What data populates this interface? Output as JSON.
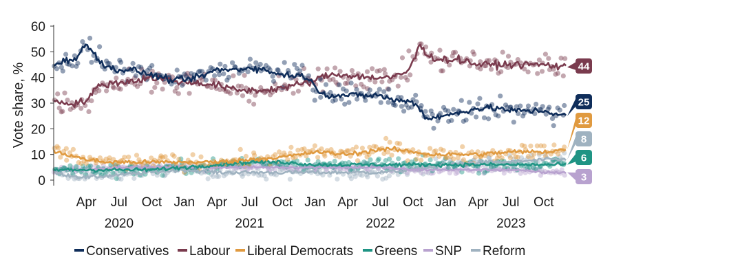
{
  "chart_data": {
    "type": "line",
    "title": "",
    "xlabel": "",
    "ylabel": "Vote share, %",
    "ylim": [
      0,
      60
    ],
    "yticks": [
      0,
      10,
      20,
      30,
      40,
      50,
      60
    ],
    "x_range": [
      2020.0,
      2023.92
    ],
    "x_ticks": [
      {
        "label": "Apr",
        "x": 2020.25
      },
      {
        "label": "Jul",
        "x": 2020.5
      },
      {
        "label": "Oct",
        "x": 2020.75
      },
      {
        "label": "Jan",
        "x": 2021.0
      },
      {
        "label": "Apr",
        "x": 2021.25
      },
      {
        "label": "Jul",
        "x": 2021.5
      },
      {
        "label": "Oct",
        "x": 2021.75
      },
      {
        "label": "Jan",
        "x": 2022.0
      },
      {
        "label": "Apr",
        "x": 2022.25
      },
      {
        "label": "Jul",
        "x": 2022.5
      },
      {
        "label": "Oct",
        "x": 2022.75
      },
      {
        "label": "Jan",
        "x": 2023.0
      },
      {
        "label": "Apr",
        "x": 2023.25
      },
      {
        "label": "Jul",
        "x": 2023.5
      },
      {
        "label": "Oct",
        "x": 2023.75
      }
    ],
    "year_labels": [
      {
        "label": "2020",
        "x": 2020.5
      },
      {
        "label": "2021",
        "x": 2021.5
      },
      {
        "label": "2022",
        "x": 2022.5
      },
      {
        "label": "2023",
        "x": 2023.5
      }
    ],
    "legend_placement": "bottom",
    "series": [
      {
        "name": "Conservatives",
        "color": "#0f2d5a",
        "end_label": "25",
        "x": [
          2020.0,
          2020.1,
          2020.17,
          2020.25,
          2020.3,
          2020.4,
          2020.5,
          2020.6,
          2020.75,
          2020.9,
          2021.0,
          2021.1,
          2021.25,
          2021.4,
          2021.5,
          2021.6,
          2021.75,
          2021.85,
          2021.95,
          2022.0,
          2022.1,
          2022.25,
          2022.4,
          2022.5,
          2022.6,
          2022.7,
          2022.77,
          2022.85,
          2023.0,
          2023.15,
          2023.25,
          2023.4,
          2023.5,
          2023.6,
          2023.75,
          2023.92
        ],
        "y": [
          45,
          47,
          47,
          53,
          50,
          44,
          43,
          43,
          41,
          39,
          39,
          40,
          43,
          43,
          44,
          43,
          41,
          41,
          40,
          36,
          33,
          33,
          33,
          33,
          31,
          31,
          30,
          24,
          25,
          27,
          28,
          28,
          27,
          27,
          27,
          25
        ]
      },
      {
        "name": "Labour",
        "color": "#7a3b4e",
        "end_label": "44",
        "x": [
          2020.0,
          2020.1,
          2020.17,
          2020.25,
          2020.35,
          2020.5,
          2020.65,
          2020.75,
          2020.9,
          2021.0,
          2021.1,
          2021.25,
          2021.4,
          2021.5,
          2021.6,
          2021.75,
          2021.85,
          2021.95,
          2022.0,
          2022.1,
          2022.25,
          2022.4,
          2022.5,
          2022.6,
          2022.7,
          2022.77,
          2022.8,
          2022.85,
          2022.95,
          2023.1,
          2023.25,
          2023.4,
          2023.5,
          2023.6,
          2023.75,
          2023.92
        ],
        "y": [
          31,
          30,
          30,
          31,
          37,
          38,
          39,
          40,
          39,
          38,
          38,
          37,
          35,
          35,
          35,
          36,
          37,
          38,
          39,
          41,
          41,
          40,
          40,
          40,
          42,
          48,
          53,
          49,
          47,
          47,
          45,
          45,
          45,
          45,
          45,
          44
        ]
      },
      {
        "name": "Liberal Democrats",
        "color": "#e09a40",
        "end_label": "12",
        "x": [
          2020.0,
          2020.1,
          2020.25,
          2020.4,
          2020.5,
          2020.75,
          2021.0,
          2021.25,
          2021.5,
          2021.75,
          2021.9,
          2022.0,
          2022.25,
          2022.5,
          2022.6,
          2022.75,
          2022.9,
          2023.0,
          2023.25,
          2023.5,
          2023.75,
          2023.92
        ],
        "y": [
          11,
          10,
          8,
          7,
          7,
          7,
          7,
          7,
          8,
          9,
          10,
          11,
          10,
          12,
          12,
          11,
          10,
          10,
          10,
          11,
          11,
          12
        ]
      },
      {
        "name": "Greens",
        "color": "#1f9484",
        "end_label": "6",
        "x": [
          2020.0,
          2020.25,
          2020.5,
          2020.75,
          2021.0,
          2021.25,
          2021.5,
          2021.75,
          2022.0,
          2022.25,
          2022.5,
          2022.75,
          2023.0,
          2023.25,
          2023.5,
          2023.75,
          2023.92
        ],
        "y": [
          4,
          4,
          4,
          4,
          5,
          6,
          7,
          7,
          6,
          6,
          6,
          6,
          6,
          6,
          6,
          6,
          6
        ]
      },
      {
        "name": "SNP",
        "color": "#b8a2cf",
        "end_label": "3",
        "x": [
          2020.0,
          2020.25,
          2020.5,
          2020.75,
          2021.0,
          2021.25,
          2021.5,
          2021.75,
          2022.0,
          2022.25,
          2022.5,
          2022.75,
          2023.0,
          2023.25,
          2023.5,
          2023.75,
          2023.92
        ],
        "y": [
          4,
          4,
          5,
          5,
          5,
          5,
          5,
          5,
          5,
          5,
          5,
          4,
          4,
          4,
          4,
          3,
          3
        ]
      },
      {
        "name": "Reform",
        "color": "#9fb2c0",
        "end_label": "8",
        "x": [
          2020.0,
          2020.1,
          2020.25,
          2020.5,
          2020.75,
          2021.0,
          2021.25,
          2021.5,
          2021.75,
          2022.0,
          2022.25,
          2022.5,
          2022.75,
          2023.0,
          2023.25,
          2023.5,
          2023.75,
          2023.92
        ],
        "y": [
          3,
          2,
          1,
          2,
          3,
          4,
          3,
          3,
          3,
          3,
          3,
          3,
          4,
          6,
          7,
          7,
          8,
          8
        ]
      }
    ]
  }
}
